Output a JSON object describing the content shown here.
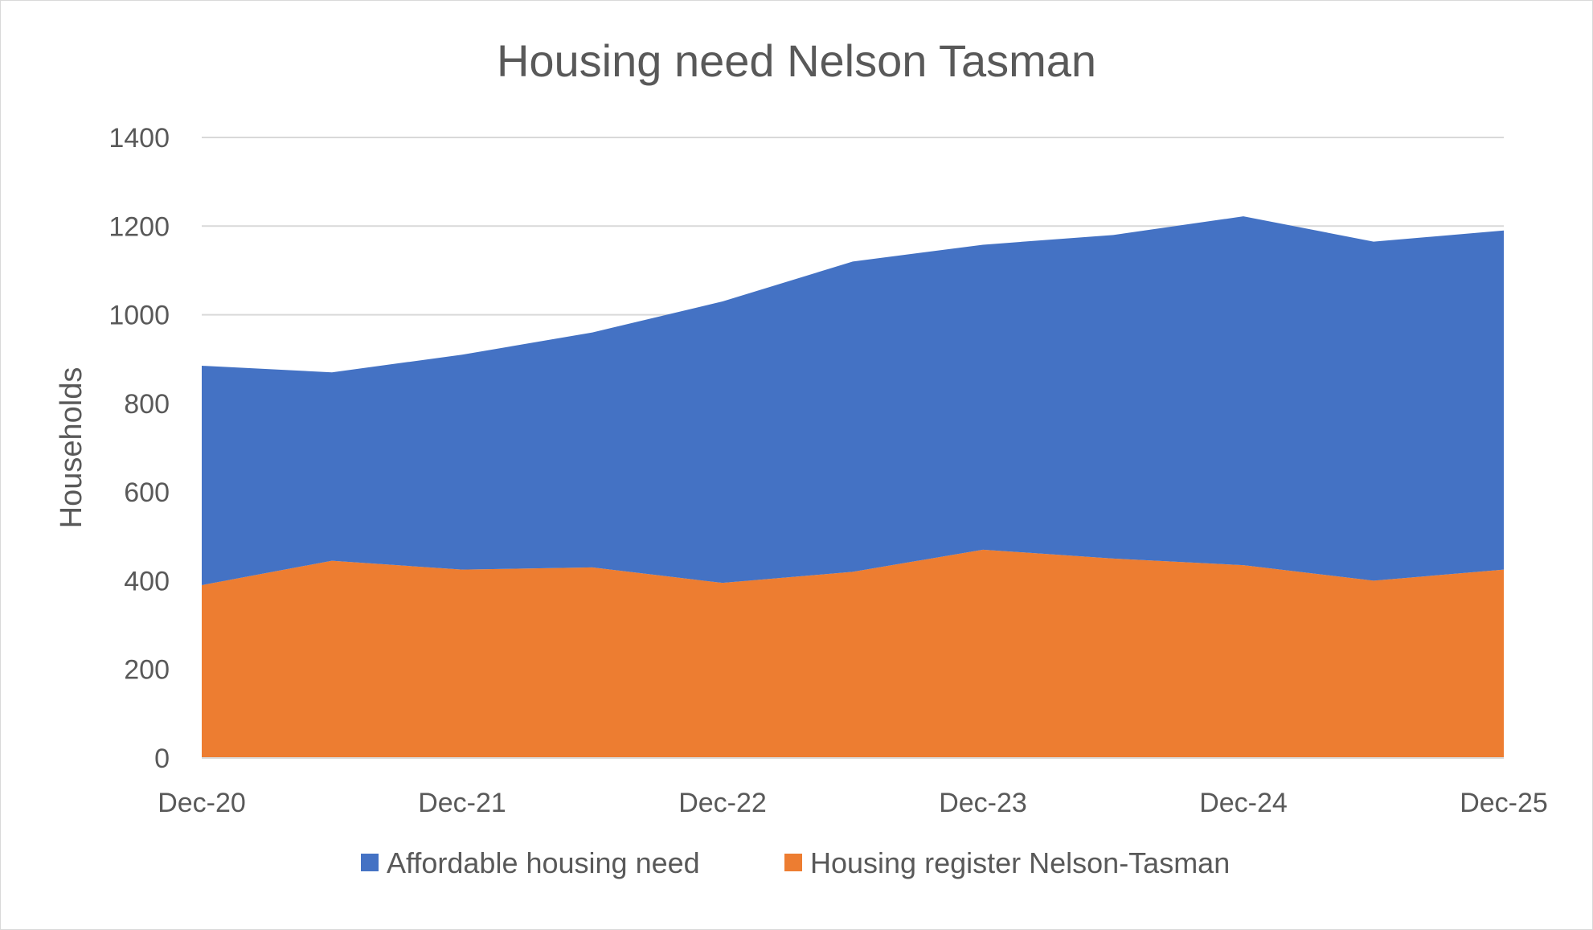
{
  "chart_data": {
    "type": "area",
    "stacked": true,
    "title": "Housing need Nelson Tasman",
    "xlabel": "",
    "ylabel": "Households",
    "ylim": [
      0,
      1400
    ],
    "yticks": [
      0,
      200,
      400,
      600,
      800,
      1000,
      1200,
      1400
    ],
    "x_tick_labels": [
      "Dec-20",
      "Dec-21",
      "Dec-22",
      "Dec-23",
      "Dec-24",
      "Dec-25"
    ],
    "x_periods": [
      "Dec-20",
      "Jun-21",
      "Dec-21",
      "Jun-22",
      "Dec-22",
      "Jun-23",
      "Dec-23",
      "Jun-24",
      "Dec-24",
      "Jun-25",
      "Dec-25"
    ],
    "grid": true,
    "legend_position": "bottom",
    "series": [
      {
        "name": "Housing register Nelson-Tasman",
        "color": "#ED7D31",
        "values": [
          390,
          445,
          425,
          430,
          395,
          420,
          470,
          450,
          435,
          400,
          425
        ]
      },
      {
        "name": "Affordable housing need",
        "color": "#4472C4",
        "values": [
          495,
          425,
          485,
          530,
          635,
          700,
          688,
          730,
          787,
          765,
          765
        ]
      }
    ],
    "legend_order": [
      "Affordable housing need",
      "Housing register Nelson-Tasman"
    ]
  }
}
